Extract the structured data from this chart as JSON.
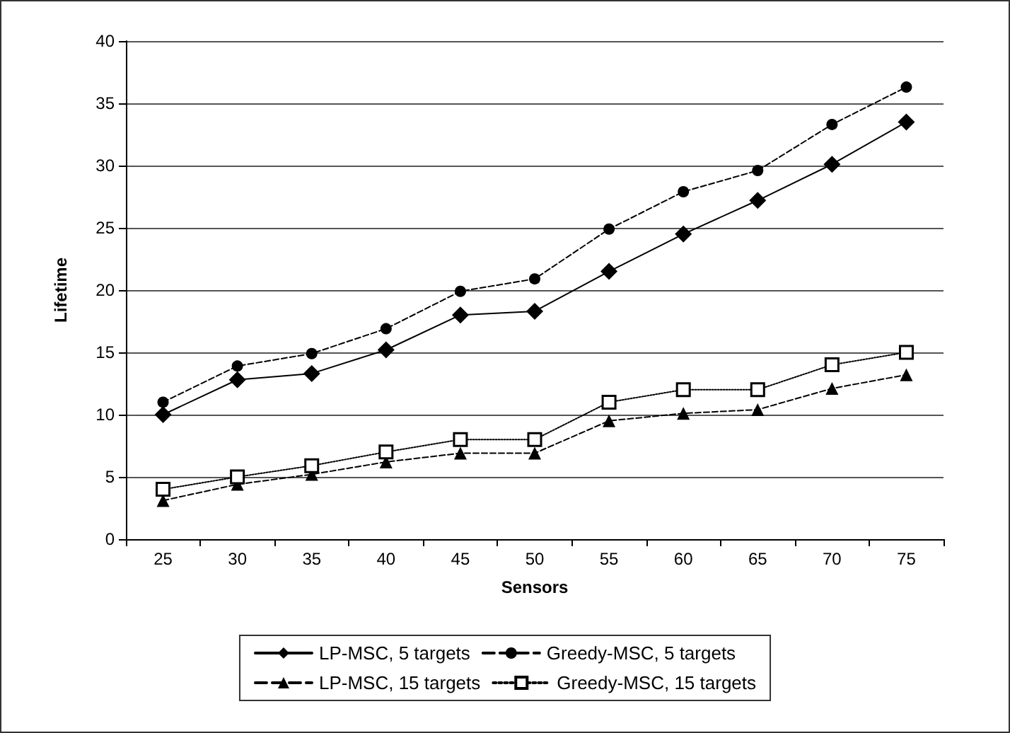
{
  "chart_data": {
    "type": "line",
    "xlabel": "Sensors",
    "ylabel": "Lifetime",
    "categories": [
      "25",
      "30",
      "35",
      "40",
      "45",
      "50",
      "55",
      "60",
      "65",
      "70",
      "75"
    ],
    "series": [
      {
        "name": "LP-MSC, 5 targets",
        "color": "#000000",
        "marker": "diamond",
        "line_style": "solid",
        "values": [
          10,
          12.8,
          13.3,
          15.2,
          18,
          18.3,
          21.5,
          24.5,
          27.2,
          30.1,
          33.5
        ]
      },
      {
        "name": "Greedy-MSC, 5 targets",
        "color": "#000000",
        "marker": "circle",
        "line_style": "dashed",
        "values": [
          11,
          13.9,
          14.9,
          16.9,
          19.9,
          20.9,
          24.9,
          27.9,
          29.6,
          33.3,
          36.3
        ]
      },
      {
        "name": "LP-MSC, 15 targets",
        "color": "#000000",
        "marker": "triangle",
        "line_style": "dashed",
        "values": [
          3.1,
          4.4,
          5.2,
          6.2,
          6.9,
          6.9,
          9.5,
          10.1,
          10.4,
          12.1,
          13.2
        ]
      },
      {
        "name": "Greedy-MSC, 15 targets",
        "color": "#000000",
        "marker": "square",
        "line_style": "dotted",
        "values": [
          4,
          5,
          5.9,
          7,
          8,
          8,
          11,
          12,
          12,
          14,
          15
        ]
      }
    ],
    "ylim": [
      0,
      40
    ],
    "yticks": [
      0,
      5,
      10,
      15,
      20,
      25,
      30,
      35,
      40
    ],
    "grid": "y",
    "legend": "bottom"
  }
}
